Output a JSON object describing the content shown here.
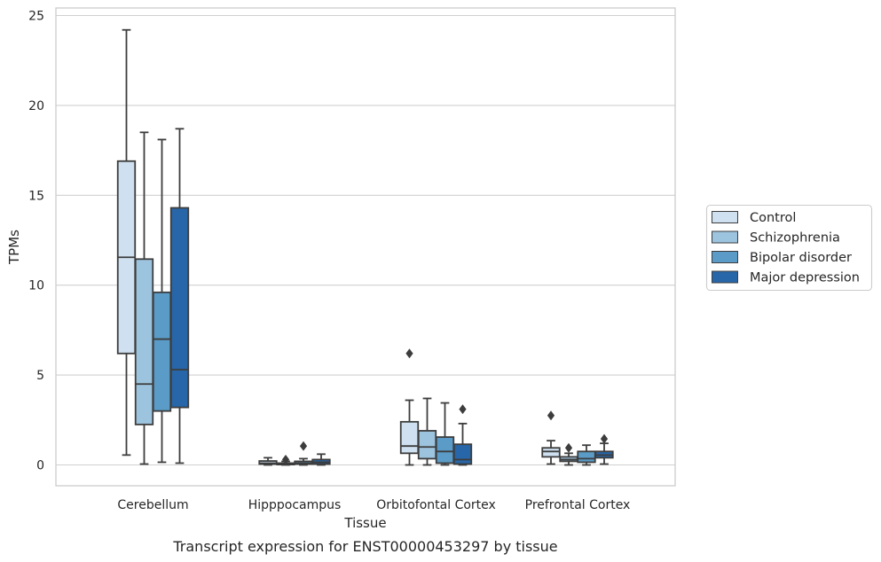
{
  "chart_data": {
    "type": "box",
    "title": "",
    "caption": "Transcript expression for ENST00000453297 by tissue",
    "xlabel": "Tissue",
    "ylabel": "TPMs",
    "ylim": [
      -1.1,
      25.5
    ],
    "yticks": [
      0,
      5,
      10,
      15,
      20,
      25
    ],
    "grid": "horizontal",
    "legend_placement": "right",
    "categories": [
      "Cerebellum",
      "Hipppocampus",
      "Orbitofontal Cortex",
      "Prefrontal Cortex"
    ],
    "series": [
      {
        "name": "Control",
        "color": "#cfe0f0",
        "boxes": [
          {
            "whislo": 0.55,
            "q1": 6.2,
            "med": 11.55,
            "q3": 16.9,
            "whishi": 24.2,
            "fliers": []
          },
          {
            "whislo": 0.0,
            "q1": 0.05,
            "med": 0.1,
            "q3": 0.22,
            "whishi": 0.4,
            "fliers": []
          },
          {
            "whislo": 0.0,
            "q1": 0.65,
            "med": 1.05,
            "q3": 2.4,
            "whishi": 3.6,
            "fliers": [
              6.2
            ]
          },
          {
            "whislo": 0.05,
            "q1": 0.45,
            "med": 0.75,
            "q3": 0.95,
            "whishi": 1.35,
            "fliers": [
              2.75
            ]
          }
        ]
      },
      {
        "name": "Schizophrenia",
        "color": "#9dc4de",
        "boxes": [
          {
            "whislo": 0.05,
            "q1": 2.25,
            "med": 4.5,
            "q3": 11.45,
            "whishi": 18.5,
            "fliers": []
          },
          {
            "whislo": 0.0,
            "q1": 0.02,
            "med": 0.05,
            "q3": 0.1,
            "whishi": 0.2,
            "fliers": [
              0.3
            ]
          },
          {
            "whislo": 0.0,
            "q1": 0.35,
            "med": 1.0,
            "q3": 1.9,
            "whishi": 3.7,
            "fliers": []
          },
          {
            "whislo": 0.0,
            "q1": 0.2,
            "med": 0.3,
            "q3": 0.45,
            "whishi": 0.65,
            "fliers": [
              0.95
            ]
          }
        ]
      },
      {
        "name": "Bipolar disorder",
        "color": "#5a9bc7",
        "boxes": [
          {
            "whislo": 0.15,
            "q1": 3.0,
            "med": 7.0,
            "q3": 9.6,
            "whishi": 18.1,
            "fliers": []
          },
          {
            "whislo": 0.0,
            "q1": 0.05,
            "med": 0.1,
            "q3": 0.2,
            "whishi": 0.35,
            "fliers": [
              1.05
            ]
          },
          {
            "whislo": 0.0,
            "q1": 0.1,
            "med": 0.75,
            "q3": 1.55,
            "whishi": 3.45,
            "fliers": []
          },
          {
            "whislo": 0.0,
            "q1": 0.15,
            "med": 0.35,
            "q3": 0.75,
            "whishi": 1.1,
            "fliers": []
          }
        ]
      },
      {
        "name": "Major depression",
        "color": "#2766a8",
        "boxes": [
          {
            "whislo": 0.1,
            "q1": 3.2,
            "med": 5.3,
            "q3": 14.3,
            "whishi": 18.7,
            "fliers": []
          },
          {
            "whislo": 0.0,
            "q1": 0.05,
            "med": 0.15,
            "q3": 0.3,
            "whishi": 0.6,
            "fliers": []
          },
          {
            "whislo": 0.0,
            "q1": 0.05,
            "med": 0.3,
            "q3": 1.15,
            "whishi": 2.3,
            "fliers": [
              3.1
            ]
          },
          {
            "whislo": 0.05,
            "q1": 0.4,
            "med": 0.55,
            "q3": 0.75,
            "whishi": 1.2,
            "fliers": [
              1.45
            ]
          }
        ]
      }
    ]
  }
}
